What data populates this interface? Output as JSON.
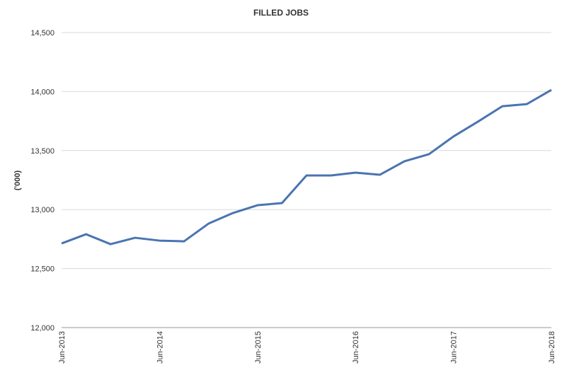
{
  "chart_data": {
    "type": "line",
    "title": "FILLED JOBS",
    "y_label": "('000)",
    "categories": [
      "Jun-2013",
      null,
      null,
      null,
      "Jun-2014",
      null,
      null,
      null,
      "Jun-2015",
      null,
      null,
      null,
      "Jun-2016",
      null,
      null,
      null,
      "Jun-2017",
      null,
      null,
      null,
      "Jun-2018"
    ],
    "series": [
      {
        "name": "Filled jobs",
        "color": "#4a74b0",
        "values": [
          12713,
          12791,
          12707,
          12761,
          12737,
          12731,
          12881,
          12971,
          13037,
          13055,
          13289,
          13289,
          13313,
          13295,
          13409,
          13469,
          13619,
          13745,
          13876,
          13894,
          14014
        ]
      }
    ],
    "ylim": [
      12000,
      14500
    ],
    "yticks": [
      {
        "value": 12000,
        "label": "12,000"
      },
      {
        "value": 12500,
        "label": "12,500"
      },
      {
        "value": 13000,
        "label": "13,000"
      },
      {
        "value": 13500,
        "label": "13,500"
      },
      {
        "value": 14000,
        "label": "14,000"
      },
      {
        "value": 14500,
        "label": "14,500"
      }
    ],
    "grid": true
  }
}
